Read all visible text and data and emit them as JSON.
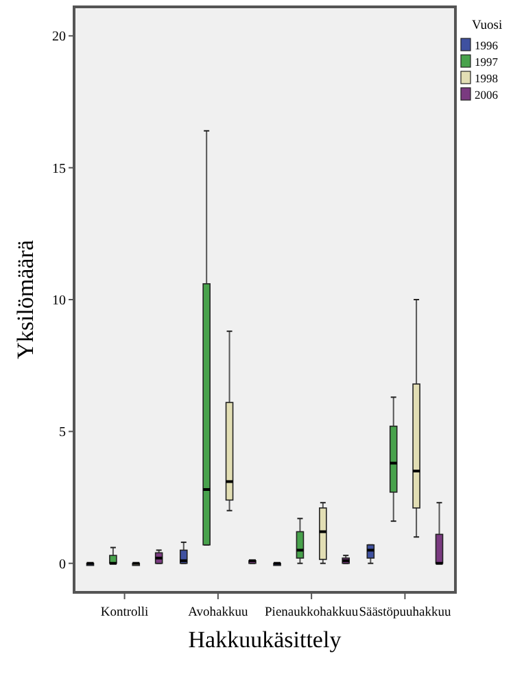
{
  "chart_data": {
    "type": "box",
    "xlabel": "Hakkuukäsittely",
    "ylabel": "Yksilömäärä",
    "legend_title": "Vuosi",
    "legend": "top right",
    "categories": [
      "Kontrolli",
      "Avohakkuu",
      "Pienaukkohakkuu",
      "Säästöpuuhakkuu"
    ],
    "ylim": [
      -1.1,
      21.1
    ],
    "yticks": [
      0,
      5,
      10,
      15,
      20
    ],
    "series": [
      {
        "name": "1996",
        "color": "#3f51a0",
        "boxes": [
          {
            "low": 0,
            "q1": 0,
            "median": 0,
            "q3": 0,
            "high": 0
          },
          {
            "low": 0,
            "q1": 0,
            "median": 0.1,
            "q3": 0.5,
            "high": 0.8
          },
          {
            "low": 0,
            "q1": 0,
            "median": 0,
            "q3": 0,
            "high": 0
          },
          {
            "low": 0,
            "q1": 0.2,
            "median": 0.5,
            "q3": 0.7,
            "high": 0.7
          }
        ]
      },
      {
        "name": "1997",
        "color": "#48a24c",
        "boxes": [
          {
            "low": 0,
            "q1": 0,
            "median": 0,
            "q3": 0.3,
            "high": 0.6
          },
          {
            "low": 0.7,
            "q1": 0.7,
            "median": 2.8,
            "q3": 10.6,
            "high": 16.4
          },
          {
            "low": 0,
            "q1": 0.2,
            "median": 0.5,
            "q3": 1.2,
            "high": 1.7
          },
          {
            "low": 1.6,
            "q1": 2.7,
            "median": 3.8,
            "q3": 5.2,
            "high": 6.3
          }
        ]
      },
      {
        "name": "1998",
        "color": "#e2deb4",
        "boxes": [
          {
            "low": 0,
            "q1": 0,
            "median": 0,
            "q3": 0,
            "high": 0
          },
          {
            "low": 2,
            "q1": 2.4,
            "median": 3.1,
            "q3": 6.1,
            "high": 8.8
          },
          {
            "low": 0,
            "q1": 0.15,
            "median": 1.2,
            "q3": 2.1,
            "high": 2.3
          },
          {
            "low": 1,
            "q1": 2.1,
            "median": 3.5,
            "q3": 6.8,
            "high": 10
          }
        ]
      },
      {
        "name": "2006",
        "color": "#7a3a80",
        "boxes": [
          {
            "low": 0,
            "q1": 0,
            "median": 0.2,
            "q3": 0.4,
            "high": 0.5
          },
          {
            "low": 0,
            "q1": 0,
            "median": 0.1,
            "q3": 0.1,
            "high": 0.1
          },
          {
            "low": 0,
            "q1": 0,
            "median": 0.1,
            "q3": 0.2,
            "high": 0.3
          },
          {
            "low": 0,
            "q1": 0,
            "median": 0,
            "q3": 1.1,
            "high": 2.3
          }
        ]
      }
    ]
  }
}
